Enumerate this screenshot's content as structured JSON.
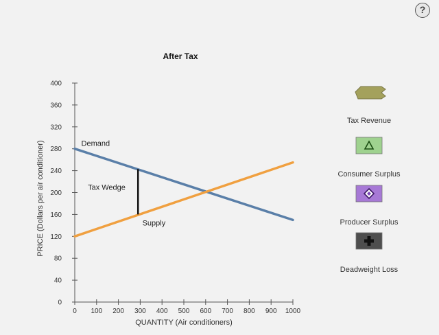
{
  "help": {
    "label": "?"
  },
  "chart_data": {
    "type": "line",
    "title": "After Tax",
    "xlabel": "QUANTITY (Air conditioners)",
    "ylabel": "PRICE (Dollars per air conditioner)",
    "xlim": [
      0,
      1000
    ],
    "ylim": [
      0,
      400
    ],
    "x_ticks": [
      0,
      100,
      200,
      300,
      400,
      500,
      600,
      700,
      800,
      900,
      1000
    ],
    "y_ticks": [
      0,
      40,
      80,
      120,
      160,
      200,
      240,
      280,
      320,
      360,
      400
    ],
    "grid": false,
    "series": [
      {
        "name": "Demand",
        "color": "#5a7fa8",
        "points": [
          [
            0,
            280
          ],
          [
            1000,
            150
          ]
        ]
      },
      {
        "name": "Supply",
        "color": "#f0a040",
        "points": [
          [
            0,
            120
          ],
          [
            1000,
            255
          ]
        ]
      }
    ],
    "tax_wedge": {
      "label": "Tax Wedge",
      "x": 290,
      "y_top": 243,
      "y_bottom": 160,
      "color": "#111111"
    },
    "annotations": [
      {
        "text": "Demand",
        "x": 30,
        "y": 285
      },
      {
        "text": "Supply",
        "x": 310,
        "y": 140
      },
      {
        "text": "Tax Wedge",
        "x": 60,
        "y": 205
      }
    ],
    "legend": {
      "placement": "right",
      "items": [
        {
          "label": "Tax Revenue",
          "icon": "tax-revenue-icon",
          "color": "#a4a15c"
        },
        {
          "label": "Consumer Surplus",
          "icon": "consumer-surplus-icon",
          "color": "#9fd28f"
        },
        {
          "label": "Producer Surplus",
          "icon": "producer-surplus-icon",
          "color": "#a779d6"
        },
        {
          "label": "Deadweight Loss",
          "icon": "deadweight-loss-icon",
          "color": "#4e4e4e"
        }
      ]
    }
  }
}
